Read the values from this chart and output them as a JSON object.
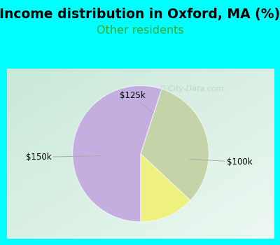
{
  "title": "Income distribution in Oxford, MA (%)",
  "subtitle": "Other residents",
  "title_fontsize": 13.5,
  "subtitle_fontsize": 11.5,
  "title_color": "#000000",
  "subtitle_color": "#33aa33",
  "background_color": "#00FFFF",
  "chart_bg_top_left": "#c8e8d8",
  "chart_bg_bottom_right": "#e8f4ee",
  "labels": [
    "$100k",
    "$125k",
    "$150k"
  ],
  "values": [
    55,
    13,
    32
  ],
  "colors": [
    "#c4aee0",
    "#eef080",
    "#c5d4a8"
  ],
  "watermark": "City-Data.com",
  "start_angle": 72,
  "label_positions": {
    "$100k": [
      1.45,
      -0.12
    ],
    "$125k": [
      -0.12,
      0.85
    ],
    "$150k": [
      -1.5,
      -0.05
    ]
  },
  "arrow_points": {
    "$100k": [
      0.72,
      -0.08
    ],
    "$125k": [
      0.18,
      0.6
    ],
    "$150k": [
      -0.6,
      -0.03
    ]
  }
}
